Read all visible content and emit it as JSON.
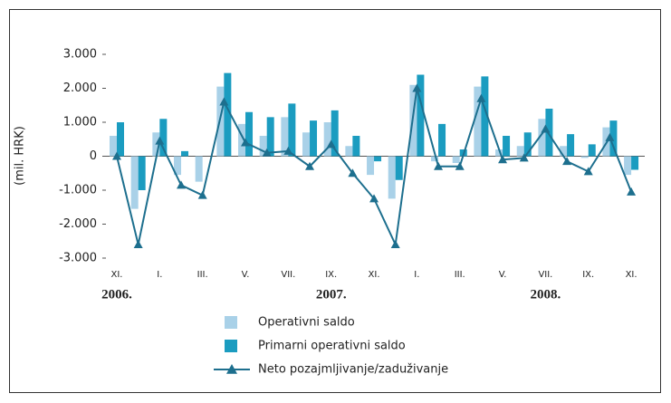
{
  "chart_data": {
    "type": "bar",
    "ylabel": "(mil. HRK)",
    "categories": [
      "XI.",
      null,
      "I.",
      null,
      "III.",
      null,
      "V.",
      null,
      "VII.",
      null,
      "IX.",
      null,
      "XI.",
      null,
      "I.",
      null,
      "III.",
      null,
      "V.",
      null,
      "VII.",
      null,
      "IX.",
      null,
      "XI."
    ],
    "year_labels": [
      "2006.",
      "2007.",
      "2008."
    ],
    "ylim": [
      -3000,
      3000
    ],
    "yticks": [
      {
        "value": 3000,
        "label": "3.000"
      },
      {
        "value": 2000,
        "label": "2.000"
      },
      {
        "value": 1000,
        "label": "1.000"
      },
      0,
      {
        "value": -1000,
        "label": "-1.000"
      },
      {
        "value": -2000,
        "label": "-2.000"
      },
      {
        "value": -3000,
        "label": "-3.000"
      }
    ],
    "series": [
      {
        "name": "Operativni saldo",
        "color": "#a9d1e8",
        "type": "bar",
        "values": [
          600,
          -1550,
          700,
          -550,
          -750,
          2050,
          950,
          600,
          1150,
          700,
          1000,
          300,
          -550,
          -1250,
          2100,
          -150,
          -200,
          2050,
          200,
          300,
          1100,
          300,
          -50,
          850,
          -550
        ]
      },
      {
        "name": "Primarni operativni saldo",
        "color": "#1b9cc0",
        "type": "bar",
        "values": [
          1000,
          -1000,
          1100,
          150,
          0,
          2450,
          1300,
          1150,
          1550,
          1050,
          1350,
          600,
          -150,
          -700,
          2400,
          950,
          200,
          2350,
          600,
          700,
          1400,
          650,
          350,
          1050,
          -400
        ]
      },
      {
        "name": "Neto pozajmljivanje/zaduživanje",
        "color": "#1d6f8e",
        "type": "line",
        "values": [
          0,
          -2600,
          450,
          -850,
          -1150,
          1600,
          400,
          100,
          150,
          -300,
          350,
          -500,
          -1250,
          -2600,
          2000,
          -300,
          -300,
          1700,
          -100,
          -50,
          800,
          -150,
          -450,
          550,
          -1050
        ]
      }
    ]
  }
}
